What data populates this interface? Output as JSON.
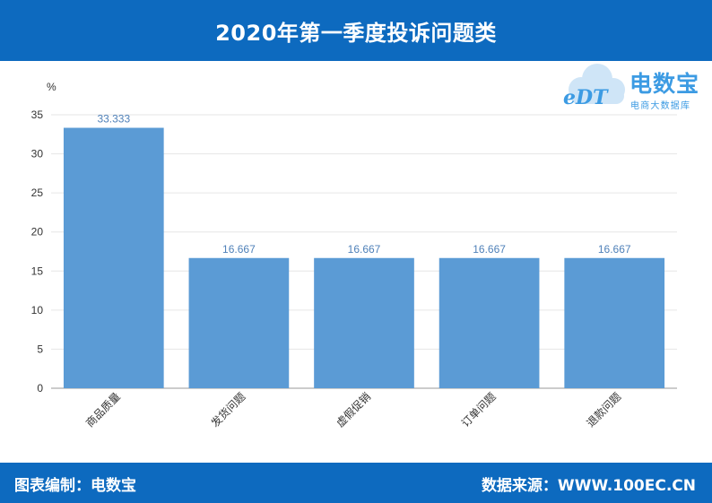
{
  "header": {
    "title": "2020年第一季度投诉问题类"
  },
  "logo": {
    "mark": "eDT",
    "brand": "电数宝",
    "tagline": "电商大数据库",
    "icon": "cloud-icon"
  },
  "footer": {
    "left_text": "图表编制：电数宝",
    "right_text": "数据来源：WWW.100EC.CN"
  },
  "colors": {
    "header_bg": "#0d6abf",
    "bar": "#5b9bd5",
    "data_label": "#4f81b9",
    "logo": "#3c9be3"
  },
  "chart_data": {
    "type": "bar",
    "title": "2020年第一季度投诉问题类",
    "ylabel": "%",
    "xlabel": "",
    "ylim": [
      0,
      35
    ],
    "yticks": [
      0,
      5,
      10,
      15,
      20,
      25,
      30,
      35
    ],
    "grid": true,
    "categories": [
      "商品质量",
      "发货问题",
      "虚假促销",
      "订单问题",
      "退款问题"
    ],
    "values": [
      33.333,
      16.667,
      16.667,
      16.667,
      16.667
    ],
    "data_labels": [
      "33.333",
      "16.667",
      "16.667",
      "16.667",
      "16.667"
    ]
  }
}
